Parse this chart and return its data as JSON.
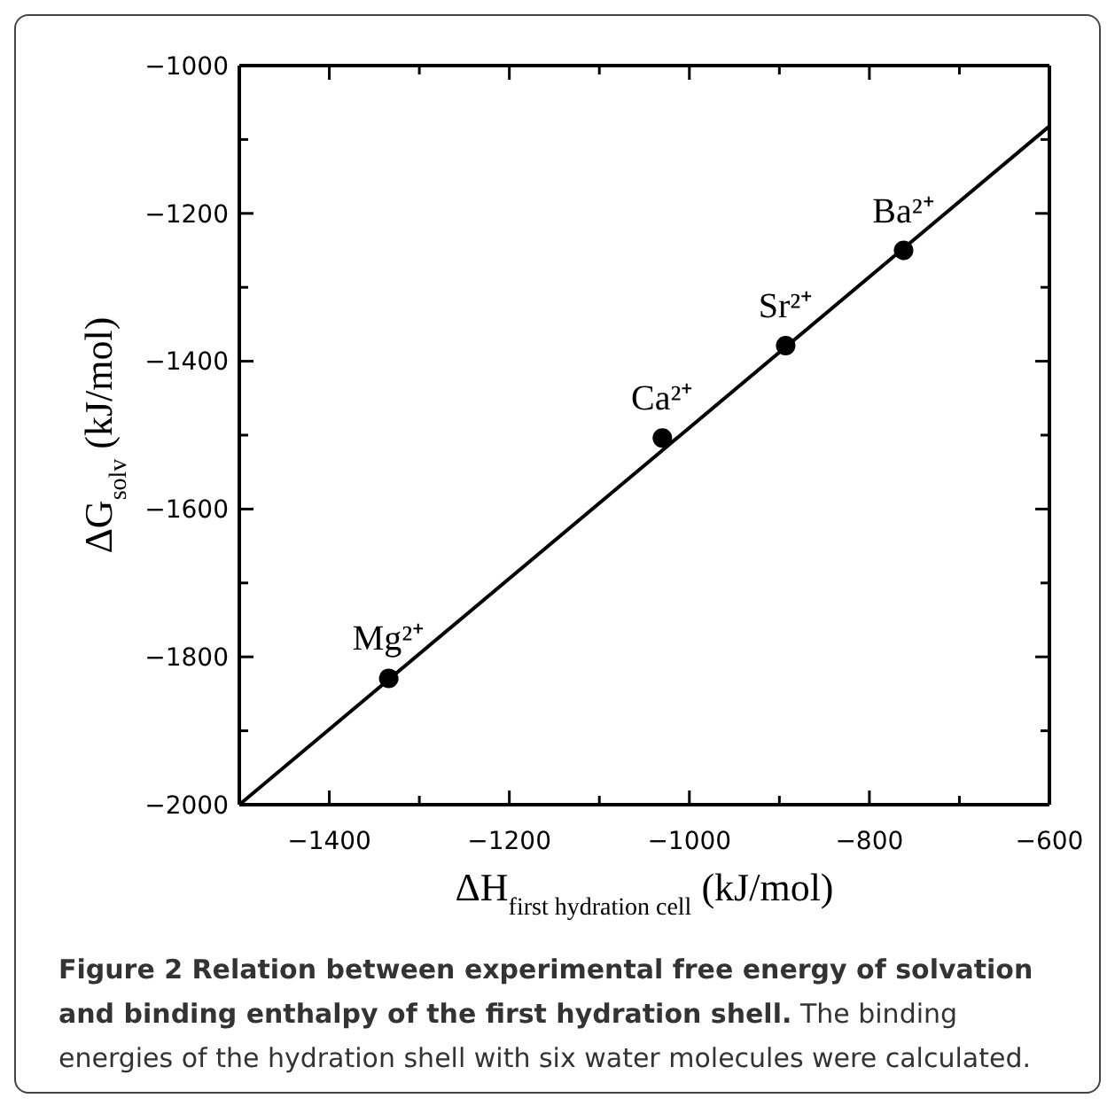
{
  "chart_data": {
    "type": "scatter",
    "xlabel": "ΔH$_{first hydration cell}$ (kJ/mol)",
    "ylabel": "ΔG$_{solv}$ (kJ/mol)",
    "x": [
      -1334,
      -1030,
      -893,
      -762
    ],
    "series": [
      {
        "color": "#000000",
        "values": [
          -1829,
          -1504,
          -1379,
          -1250
        ],
        "marker": "circle"
      },
      {
        "type": "line",
        "color": "#000000",
        "x": [
          -1500,
          -600
        ],
        "values": [
          -2000,
          -1082
        ]
      }
    ],
    "xlim": [
      -1500,
      -600
    ],
    "xticks": [
      {
        "value": -1500,
        "label": null
      },
      -1400,
      {
        "value": -1300,
        "label": null
      },
      -1200,
      {
        "value": -1100,
        "label": null
      },
      -1000,
      {
        "value": -900,
        "label": null
      },
      -800,
      {
        "value": -700,
        "label": null
      },
      -600
    ],
    "ylim": [
      -2000,
      -1000
    ],
    "yticks": [
      -2000,
      {
        "value": -1900,
        "label": null
      },
      -1800,
      {
        "value": -1700,
        "label": null
      },
      -1600,
      {
        "value": -1500,
        "label": null
      },
      -1400,
      {
        "value": -1300,
        "label": null
      },
      -1200,
      {
        "value": -1100,
        "label": null
      },
      -1000
    ],
    "grid": false,
    "annotations": [
      {
        "text": "Mg²⁺",
        "x": -1334,
        "y": -1829
      },
      {
        "text": "Ca²⁺",
        "x": -1030,
        "y": -1504
      },
      {
        "text": "Sr²⁺",
        "x": -893,
        "y": -1379
      },
      {
        "text": "Ba²⁺",
        "x": -762,
        "y": -1250
      },
      "Figure 2 Relation between experimental free energy of solvation and binding enthalpy of the first hydration shell.",
      "The binding energies of the hydration shell with six water molecules were calculated."
    ]
  }
}
